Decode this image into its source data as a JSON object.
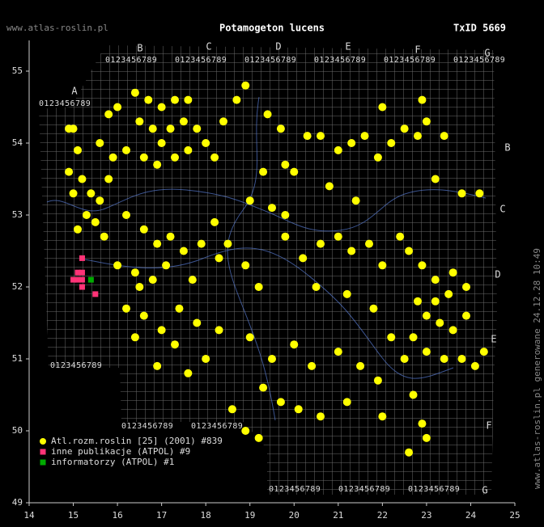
{
  "chart_data": {
    "type": "scatter",
    "title": "Potamogeton lucens",
    "watermark": "www.atlas-roslin.pl",
    "taxon_id": "TxID 5669",
    "generated_note": "www.atlas-roslin.pl generowane 24.12.28 10:49",
    "grid_letters": [
      "A",
      "B",
      "C",
      "D",
      "E",
      "F",
      "G"
    ],
    "grid_digits": "0123456789",
    "xlim": [
      14,
      25
    ],
    "xticks": [
      14,
      15,
      16,
      17,
      18,
      19,
      20,
      21,
      22,
      23,
      24,
      25
    ],
    "ylim": [
      49,
      55.5
    ],
    "yticks": [
      49,
      50,
      51,
      52,
      53,
      54,
      55
    ],
    "legend": "lower left",
    "series": [
      {
        "name": "Atl.rozm.roslin [25] (2001) #839",
        "color": "#ffff00",
        "marker": "circle",
        "x": [
          14.9,
          15.0,
          15.1,
          14.9,
          15.2,
          15.4,
          15.0,
          15.6,
          15.8,
          15.3,
          15.5,
          15.7,
          15.1,
          15.9,
          15.6,
          15.8,
          16.0,
          16.4,
          16.7,
          17.0,
          17.3,
          17.6,
          16.5,
          16.8,
          17.0,
          17.2,
          17.5,
          17.8,
          18.0,
          16.2,
          16.6,
          16.9,
          17.3,
          17.6,
          18.2,
          18.4,
          18.7,
          18.9,
          19.4,
          19.7,
          19.3,
          19.8,
          20.0,
          20.3,
          19.0,
          19.5,
          19.8,
          16.2,
          16.6,
          16.9,
          17.2,
          17.5,
          17.9,
          18.2,
          18.5,
          16.0,
          16.4,
          16.8,
          17.1,
          17.7,
          18.3,
          18.9,
          19.2,
          20.6,
          21.0,
          21.3,
          21.6,
          21.9,
          22.2,
          22.5,
          22.8,
          23.0,
          23.4,
          22.0,
          22.9,
          23.2,
          23.8,
          24.2,
          20.8,
          21.4,
          19.8,
          20.2,
          20.6,
          21.0,
          21.3,
          21.7,
          22.0,
          22.4,
          20.5,
          21.2,
          21.8,
          22.6,
          22.9,
          23.2,
          23.5,
          22.8,
          23.0,
          23.3,
          23.6,
          23.9,
          22.7,
          23.0,
          23.4,
          23.8,
          24.1,
          24.3,
          22.5,
          23.6,
          23.9,
          22.2,
          23.2,
          19.0,
          19.5,
          20.0,
          20.4,
          21.0,
          21.5,
          21.9,
          19.3,
          19.7,
          20.1,
          18.6,
          18.9,
          19.2,
          20.6,
          21.2,
          22.0,
          22.7,
          23.0,
          22.6,
          22.9,
          16.2,
          16.6,
          17.0,
          17.4,
          17.8,
          16.4,
          17.3,
          18.0,
          16.9,
          17.6,
          18.3,
          16.5
        ],
        "values": [
          54.2,
          54.2,
          53.9,
          53.6,
          53.5,
          53.3,
          53.3,
          53.2,
          53.5,
          53.0,
          52.9,
          52.7,
          52.8,
          53.8,
          54.0,
          54.4,
          54.5,
          54.7,
          54.6,
          54.5,
          54.6,
          54.6,
          54.3,
          54.2,
          54.0,
          54.2,
          54.3,
          54.2,
          54.0,
          53.9,
          53.8,
          53.7,
          53.8,
          53.9,
          53.8,
          54.3,
          54.6,
          54.8,
          54.4,
          54.2,
          53.6,
          53.7,
          53.6,
          54.1,
          53.2,
          53.1,
          53.0,
          53.0,
          52.8,
          52.6,
          52.7,
          52.5,
          52.6,
          52.9,
          52.6,
          52.3,
          52.2,
          52.1,
          52.3,
          52.1,
          52.4,
          52.3,
          52.0,
          54.1,
          53.9,
          54.0,
          54.1,
          53.8,
          54.0,
          54.2,
          54.1,
          54.3,
          54.1,
          54.5,
          54.6,
          53.5,
          53.3,
          53.3,
          53.4,
          53.2,
          52.7,
          52.4,
          52.6,
          52.7,
          52.5,
          52.6,
          52.3,
          52.7,
          52.0,
          51.9,
          51.7,
          52.5,
          52.3,
          52.1,
          51.9,
          51.8,
          51.6,
          51.5,
          51.4,
          51.6,
          51.3,
          51.1,
          51.0,
          51.0,
          50.9,
          51.1,
          51.0,
          52.2,
          52.0,
          51.3,
          51.8,
          51.3,
          51.0,
          51.2,
          50.9,
          51.1,
          50.9,
          50.7,
          50.6,
          50.4,
          50.3,
          50.3,
          50.0,
          49.9,
          50.2,
          50.4,
          50.2,
          50.5,
          49.9,
          49.7,
          50.1,
          51.7,
          51.6,
          51.4,
          51.7,
          51.5,
          51.3,
          51.2,
          51.0,
          50.9,
          50.8,
          51.4,
          52.0
        ]
      },
      {
        "name": "inne publikacje (ATPOL) #9",
        "color": "#ff3377",
        "marker": "square",
        "x": [
          15.2,
          15.1,
          15.2,
          15.1,
          15.2,
          15.0,
          15.2,
          15.5
        ],
        "values": [
          52.4,
          52.2,
          52.2,
          52.1,
          52.1,
          52.1,
          52.0,
          51.9
        ]
      },
      {
        "name": "informatorzy (ATPOL) #1",
        "color": "#00aa00",
        "marker": "square",
        "x": [
          15.4
        ],
        "values": [
          52.1
        ]
      }
    ]
  }
}
